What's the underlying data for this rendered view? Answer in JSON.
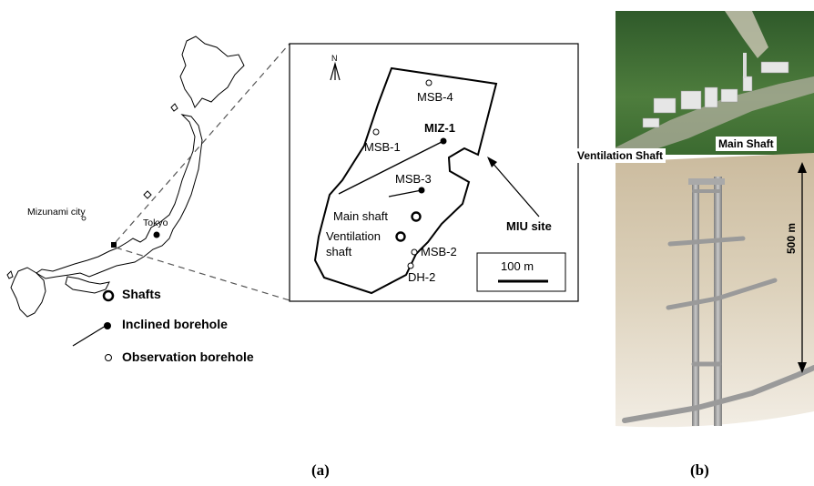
{
  "panel_a": {
    "label": "(a)",
    "map": {
      "city_label": "Mizunami city",
      "capital_label": "Tokyo"
    },
    "inset": {
      "north_label": "N",
      "boreholes": {
        "msb4": "MSB-4",
        "miz1": "MIZ-1",
        "msb1": "MSB-1",
        "msb3": "MSB-3",
        "msb2": "MSB-2",
        "dh2": "DH-2"
      },
      "main_shaft": "Main shaft",
      "ventilation_shaft_line1": "Ventilation",
      "ventilation_shaft_line2": "shaft",
      "site_label": "MIU site",
      "scale_label": "100 m"
    },
    "legend": {
      "shafts": "Shafts",
      "inclined": "Inclined borehole",
      "observation": "Observation borehole"
    }
  },
  "panel_b": {
    "label": "(b)",
    "ventilation_label": "Ventilation Shaft",
    "main_label": "Main Shaft",
    "depth_label": "500 m"
  },
  "colors": {
    "line": "#000000",
    "forest": "#3f6b34",
    "ground": "#c7b79a",
    "pipe": "#9a9a9a"
  }
}
